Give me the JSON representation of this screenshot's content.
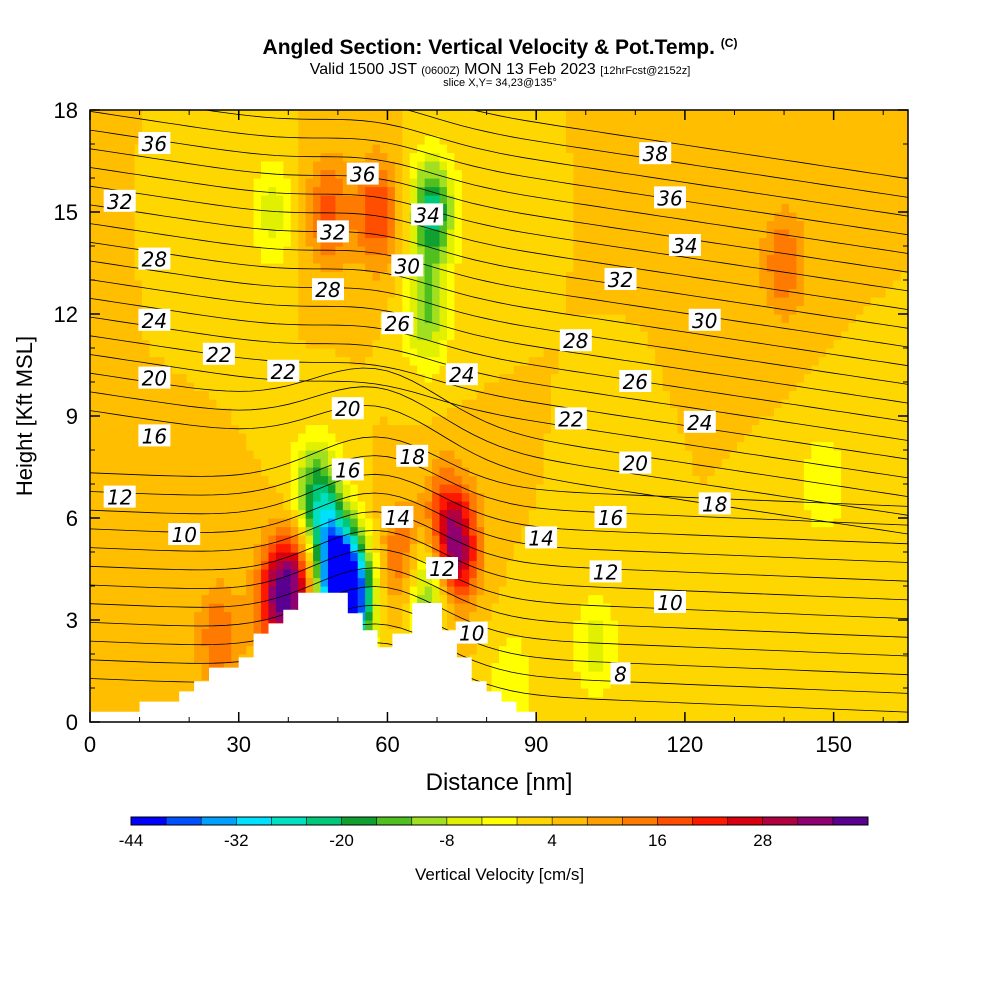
{
  "header": {
    "title": "Angled Section: Vertical Velocity & Pot.Temp.",
    "title_mark": "(C)",
    "valid_prefix": "Valid 1500 JST",
    "valid_utc": "(0600Z)",
    "valid_date": "MON 13 Feb 2023",
    "forecast": "[12hrFcst@2152z]",
    "slice": "slice X,Y= 34,23@135°"
  },
  "chart_data": {
    "type": "heatmap",
    "xlabel": "Distance [nm]",
    "ylabel": "Height [Kft MSL]",
    "xlim": [
      0,
      165
    ],
    "ylim": [
      0,
      18
    ],
    "xticks": [
      0,
      30,
      60,
      90,
      120,
      150
    ],
    "yticks": [
      0,
      3,
      6,
      9,
      12,
      15,
      18
    ],
    "colorbar": {
      "label": "Vertical Velocity [cm/s]",
      "levels": [
        -44,
        -40,
        -36,
        -32,
        -28,
        -24,
        -20,
        -16,
        -12,
        -8,
        -4,
        0,
        4,
        8,
        12,
        16,
        20,
        24,
        28,
        32,
        36
      ],
      "tick_labels": [
        -44,
        -32,
        -20,
        -8,
        4,
        16,
        28
      ],
      "colors": [
        "#0000ff",
        "#0050ff",
        "#00a0ff",
        "#00e0ff",
        "#00e0c0",
        "#00c87a",
        "#10a030",
        "#50c020",
        "#a0e020",
        "#e0f000",
        "#ffff00",
        "#ffd700",
        "#ffbe00",
        "#ff9e00",
        "#ff7a00",
        "#ff4e00",
        "#ff1800",
        "#d80010",
        "#b00040",
        "#900070",
        "#5a0090"
      ]
    },
    "background_velocity_cm_s": 4,
    "velocity_features": [
      {
        "x": 38,
        "y": 3.6,
        "value": 30
      },
      {
        "x": 42,
        "y": 4.2,
        "value": 24
      },
      {
        "x": 50,
        "y": 4.2,
        "value": -42
      },
      {
        "x": 53,
        "y": 3.6,
        "value": -30
      },
      {
        "x": 47,
        "y": 6.0,
        "value": -16
      },
      {
        "x": 45,
        "y": 7.0,
        "value": -8
      },
      {
        "x": 63,
        "y": 4.8,
        "value": 18
      },
      {
        "x": 68,
        "y": 4.0,
        "value": -16
      },
      {
        "x": 74,
        "y": 5.0,
        "value": 28
      },
      {
        "x": 72,
        "y": 6.0,
        "value": 18
      },
      {
        "x": 48,
        "y": 15.0,
        "value": 18
      },
      {
        "x": 58,
        "y": 15.0,
        "value": 20
      },
      {
        "x": 69,
        "y": 15.0,
        "value": -22
      },
      {
        "x": 68,
        "y": 12.0,
        "value": -12
      },
      {
        "x": 37,
        "y": 15.0,
        "value": -6
      },
      {
        "x": 140,
        "y": 13.5,
        "value": 16
      },
      {
        "x": 102,
        "y": 2.2,
        "value": -6
      },
      {
        "x": 148,
        "y": 7.0,
        "value": -4
      },
      {
        "x": 26,
        "y": 2.5,
        "value": 16
      },
      {
        "x": 85,
        "y": 1.2,
        "value": -4
      }
    ],
    "terrain_profile": [
      [
        0,
        0.3
      ],
      [
        10,
        0.3
      ],
      [
        10,
        0.6
      ],
      [
        18,
        0.6
      ],
      [
        18,
        0.9
      ],
      [
        21,
        0.9
      ],
      [
        21,
        1.2
      ],
      [
        24,
        1.2
      ],
      [
        24,
        1.6
      ],
      [
        30,
        1.6
      ],
      [
        30,
        1.9
      ],
      [
        33,
        1.9
      ],
      [
        33,
        2.6
      ],
      [
        36,
        2.6
      ],
      [
        36,
        2.9
      ],
      [
        39,
        2.9
      ],
      [
        39,
        3.3
      ],
      [
        42,
        3.3
      ],
      [
        42,
        3.8
      ],
      [
        52,
        3.8
      ],
      [
        52,
        3.2
      ],
      [
        55,
        3.2
      ],
      [
        55,
        2.7
      ],
      [
        58,
        2.7
      ],
      [
        58,
        2.2
      ],
      [
        61,
        2.2
      ],
      [
        61,
        2.6
      ],
      [
        64,
        2.6
      ],
      [
        64,
        2.6
      ],
      [
        65,
        2.6
      ],
      [
        65,
        3.5
      ],
      [
        71,
        3.5
      ],
      [
        71,
        2.7
      ],
      [
        74,
        2.7
      ],
      [
        74,
        1.9
      ],
      [
        77,
        1.9
      ],
      [
        77,
        1.2
      ],
      [
        80,
        1.2
      ],
      [
        80,
        0.9
      ],
      [
        83,
        0.9
      ],
      [
        83,
        0.6
      ],
      [
        86,
        0.6
      ],
      [
        86,
        0.3
      ],
      [
        90,
        0.3
      ],
      [
        90,
        0.0
      ],
      [
        165,
        0.0
      ]
    ],
    "theta_labels": [
      {
        "text": "36",
        "x": 13,
        "y": 17.0
      },
      {
        "text": "32",
        "x": 6,
        "y": 15.3
      },
      {
        "text": "28",
        "x": 13,
        "y": 13.6
      },
      {
        "text": "24",
        "x": 13,
        "y": 11.8
      },
      {
        "text": "20",
        "x": 13,
        "y": 10.1
      },
      {
        "text": "22",
        "x": 26,
        "y": 10.8
      },
      {
        "text": "22",
        "x": 39,
        "y": 10.3
      },
      {
        "text": "16",
        "x": 13,
        "y": 8.4
      },
      {
        "text": "12",
        "x": 6,
        "y": 6.6
      },
      {
        "text": "10",
        "x": 19,
        "y": 5.5
      },
      {
        "text": "36",
        "x": 55,
        "y": 16.1
      },
      {
        "text": "32",
        "x": 49,
        "y": 14.4
      },
      {
        "text": "28",
        "x": 48,
        "y": 12.7
      },
      {
        "text": "34",
        "x": 68,
        "y": 14.9
      },
      {
        "text": "30",
        "x": 64,
        "y": 13.4
      },
      {
        "text": "26",
        "x": 62,
        "y": 11.7
      },
      {
        "text": "20",
        "x": 52,
        "y": 9.2
      },
      {
        "text": "16",
        "x": 52,
        "y": 7.4
      },
      {
        "text": "18",
        "x": 65,
        "y": 7.8
      },
      {
        "text": "14",
        "x": 62,
        "y": 6.0
      },
      {
        "text": "12",
        "x": 71,
        "y": 4.5
      },
      {
        "text": "10",
        "x": 77,
        "y": 2.6
      },
      {
        "text": "24",
        "x": 75,
        "y": 10.2
      },
      {
        "text": "38",
        "x": 114,
        "y": 16.7
      },
      {
        "text": "36",
        "x": 117,
        "y": 15.4
      },
      {
        "text": "34",
        "x": 120,
        "y": 14.0
      },
      {
        "text": "32",
        "x": 107,
        "y": 13.0
      },
      {
        "text": "30",
        "x": 124,
        "y": 11.8
      },
      {
        "text": "28",
        "x": 98,
        "y": 11.2
      },
      {
        "text": "26",
        "x": 110,
        "y": 10.0
      },
      {
        "text": "24",
        "x": 123,
        "y": 8.8
      },
      {
        "text": "22",
        "x": 97,
        "y": 8.9
      },
      {
        "text": "20",
        "x": 110,
        "y": 7.6
      },
      {
        "text": "18",
        "x": 126,
        "y": 6.4
      },
      {
        "text": "16",
        "x": 105,
        "y": 6.0
      },
      {
        "text": "14",
        "x": 91,
        "y": 5.4
      },
      {
        "text": "12",
        "x": 104,
        "y": 4.4
      },
      {
        "text": "10",
        "x": 117,
        "y": 3.5
      },
      {
        "text": "8",
        "x": 107,
        "y": 1.4
      }
    ],
    "grid": false,
    "legend": "bottom"
  }
}
